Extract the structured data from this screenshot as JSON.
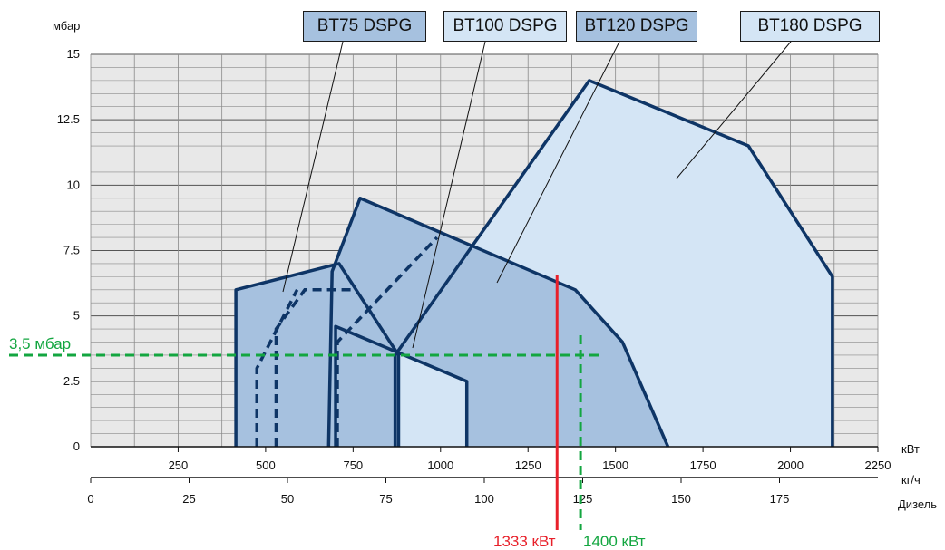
{
  "chart_data": {
    "type": "area",
    "x_axes": [
      {
        "unit": "кВт",
        "range": [
          0,
          2250
        ],
        "ticks": [
          250,
          500,
          750,
          1000,
          1250,
          1500,
          1750,
          2000,
          2250
        ]
      },
      {
        "unit": "кг/ч",
        "range": [
          0,
          200
        ],
        "ticks": [
          0,
          25,
          50,
          75,
          100,
          125,
          150,
          175
        ]
      },
      {
        "unit": "Дизель"
      }
    ],
    "y_axis": {
      "unit": "мбар",
      "range": [
        0,
        15
      ],
      "ticks": [
        "0",
        "2.5",
        "5",
        "7.5",
        "10",
        "12.5",
        "15"
      ],
      "values": [
        0,
        2.5,
        5,
        7.5,
        10,
        12.5,
        15
      ]
    },
    "grid": true,
    "legend": [
      "BT75 DSPG",
      "BT100 DSPG",
      "BT120 DSPG",
      "BT180 DSPG"
    ],
    "series": [
      {
        "name": "BT180 DSPG",
        "x_kw": [
          870,
          870,
          1425,
          1880,
          2120,
          2120
        ],
        "y_mbar": [
          0,
          3.5,
          14,
          11.5,
          6.5,
          0
        ]
      },
      {
        "name": "BT120 DSPG",
        "x_kw": [
          680,
          690,
          770,
          1385,
          1520,
          1650
        ],
        "y_mbar": [
          0,
          6.7,
          9.5,
          6,
          4,
          0
        ]
      },
      {
        "name": "BT100 DSPG",
        "x_kw": [
          700,
          700,
          1075,
          1075
        ],
        "y_mbar": [
          0,
          4.6,
          2.5,
          0
        ]
      },
      {
        "name": "BT75 DSPG",
        "x_kw": [
          415,
          415,
          710,
          880,
          880
        ],
        "y_mbar": [
          0,
          6,
          7,
          3.5,
          0
        ]
      }
    ],
    "dashed_limits": [
      {
        "x_kw": [
          475,
          475,
          590,
          590
        ],
        "y_mbar": [
          0,
          3,
          6,
          6
        ]
      },
      {
        "x_kw": [
          530,
          530,
          612,
          760
        ],
        "y_mbar": [
          0,
          4.5,
          6,
          6
        ]
      },
      {
        "x_kw": [
          705,
          705,
          990,
          990
        ],
        "y_mbar": [
          0,
          4,
          8,
          8
        ]
      }
    ],
    "annotations": {
      "pressure_label": "3,5 мбар",
      "pressure_value": 3.5,
      "red_label": "1333 кВт",
      "red_value": 1333,
      "green_label": "1400 кВт",
      "green_value": 1400
    }
  },
  "colors": {
    "outline": "#0e3566",
    "fill_dark": "#a6c1df",
    "fill_light": "#d4e5f5",
    "red": "#e8202a",
    "green": "#13a640",
    "grid_bg": "#e8e8e8"
  }
}
